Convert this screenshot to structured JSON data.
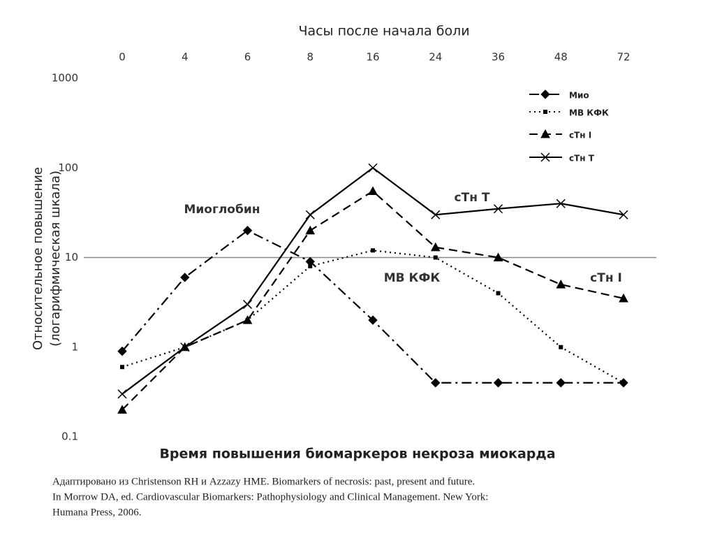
{
  "chart_data": {
    "type": "line",
    "title": "Время повышения биомаркеров некроза миокарда",
    "x_label": "Часы после начала боли",
    "y_label": [
      "Относительное повышение",
      "(логарифмическая шкала)"
    ],
    "categories": [
      "0",
      "4",
      "6",
      "8",
      "16",
      "24",
      "36",
      "48",
      "72"
    ],
    "ylim": [
      0.1,
      1000
    ],
    "yticks": [
      0.1,
      1,
      10,
      100,
      1000
    ],
    "log_scale": true,
    "reference_line": 10,
    "legend": "top-right",
    "series": [
      {
        "name": "Мио",
        "color": "#000000",
        "dash": "dash-dot",
        "marker": "diamond",
        "values": [
          0.9,
          6,
          20,
          9,
          2,
          0.4,
          0.4,
          0.4,
          0.4
        ]
      },
      {
        "name": "MB КФК",
        "color": "#000000",
        "dash": "dotted",
        "marker": "square",
        "values": [
          0.6,
          1,
          2,
          8,
          12,
          10,
          4,
          1,
          0.4
        ]
      },
      {
        "name": "cTн I",
        "color": "#000000",
        "dash": "dashed",
        "marker": "triangle",
        "values": [
          0.2,
          1,
          2,
          20,
          55,
          13,
          10,
          5,
          3.5
        ]
      },
      {
        "name": "cTн T",
        "color": "#000000",
        "dash": "solid",
        "marker": "cross",
        "values": [
          0.3,
          1,
          3,
          30,
          100,
          30,
          35,
          40,
          30
        ]
      }
    ],
    "annotations": [
      "Миоглобин",
      "cTн T",
      "MB КФК",
      "cTн I"
    ],
    "source": [
      "Адаптировано из Christenson RH и Azzazy HME. Biomarkers of necrosis: past, present and future.",
      "In Morrow DA, ed. Cardiovascular Biomarkers: Pathophysiology and Clinical Management. New York:",
      "Humana Press, 2006."
    ]
  }
}
